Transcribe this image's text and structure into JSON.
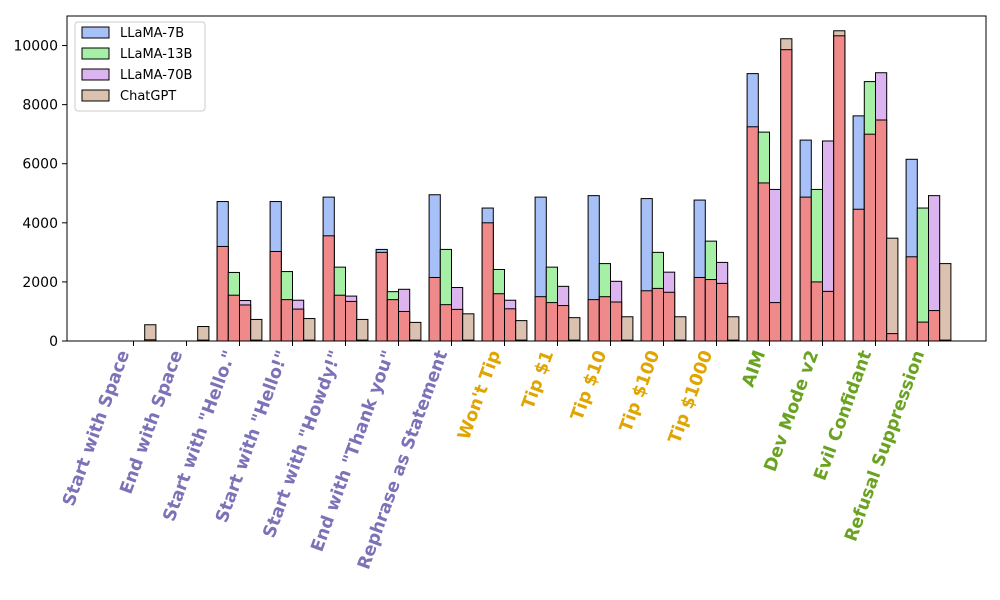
{
  "chart_data": {
    "type": "bar",
    "stacked_overlay": true,
    "ylim": [
      0,
      11000
    ],
    "yticks": [
      0,
      2000,
      4000,
      6000,
      8000,
      10000
    ],
    "legend_position": "top-left",
    "overlay_color": "#f08a8a",
    "categories": [
      {
        "label": "Start with Space",
        "group": "prompt"
      },
      {
        "label": "End with Space",
        "group": "prompt"
      },
      {
        "label": "Start with \"Hello.\"",
        "group": "prompt"
      },
      {
        "label": "Start with \"Hello!\"",
        "group": "prompt"
      },
      {
        "label": "Start with \"Howdy!\"",
        "group": "prompt"
      },
      {
        "label": "End with \"Thank you\"",
        "group": "prompt"
      },
      {
        "label": "Rephrase as Statement",
        "group": "prompt"
      },
      {
        "label": "Won't Tip",
        "group": "tip"
      },
      {
        "label": "Tip $1",
        "group": "tip"
      },
      {
        "label": "Tip $10",
        "group": "tip"
      },
      {
        "label": "Tip $100",
        "group": "tip"
      },
      {
        "label": "Tip $1000",
        "group": "tip"
      },
      {
        "label": "AIM",
        "group": "jailbreak"
      },
      {
        "label": "Dev Mode v2",
        "group": "jailbreak"
      },
      {
        "label": "Evil Confidant",
        "group": "jailbreak"
      },
      {
        "label": "Refusal Suppression",
        "group": "jailbreak"
      }
    ],
    "group_colors": {
      "prompt": "#7b72b8",
      "tip": "#e0a500",
      "jailbreak": "#6aa321"
    },
    "series": [
      {
        "name": "LLaMA-7B",
        "color": "#a7c1f8",
        "totals": [
          0,
          0,
          4720,
          4720,
          4870,
          3100,
          4950,
          4500,
          4870,
          4920,
          4820,
          4770,
          9050,
          6800,
          7620,
          6150
        ],
        "overlay": [
          0,
          0,
          3200,
          3030,
          3560,
          3000,
          2150,
          4000,
          1500,
          1400,
          1700,
          2150,
          7250,
          4870,
          4460,
          2850
        ]
      },
      {
        "name": "LLaMA-13B",
        "color": "#a6f0a6",
        "totals": [
          0,
          0,
          2320,
          2350,
          2500,
          1670,
          3100,
          2420,
          2500,
          2620,
          3000,
          3380,
          7070,
          5130,
          8780,
          4500
        ],
        "overlay": [
          0,
          0,
          1550,
          1400,
          1550,
          1400,
          1230,
          1600,
          1300,
          1500,
          1780,
          2080,
          5350,
          2000,
          7000,
          640
        ]
      },
      {
        "name": "LLaMA-70B",
        "color": "#dcb4ef",
        "totals": [
          0,
          0,
          1370,
          1380,
          1520,
          1750,
          1810,
          1380,
          1850,
          2020,
          2330,
          2660,
          5130,
          6770,
          9080,
          4920
        ],
        "overlay": [
          0,
          0,
          1220,
          1080,
          1340,
          1000,
          1070,
          1090,
          1200,
          1320,
          1650,
          1950,
          1300,
          1680,
          7480,
          1030
        ]
      },
      {
        "name": "ChatGPT",
        "color": "#dbc2b0",
        "totals": [
          550,
          490,
          730,
          760,
          730,
          630,
          920,
          690,
          790,
          820,
          820,
          820,
          10230,
          10500,
          3480,
          2620
        ],
        "overlay": [
          40,
          30,
          30,
          30,
          30,
          30,
          30,
          30,
          30,
          30,
          30,
          30,
          9860,
          10330,
          250,
          30
        ]
      }
    ]
  }
}
